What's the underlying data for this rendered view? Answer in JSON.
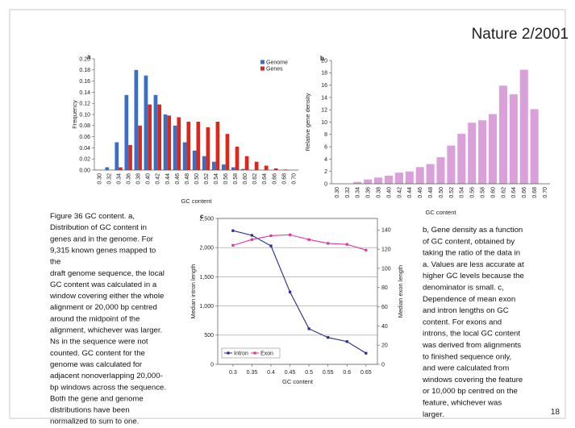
{
  "header": {
    "title": "Nature 2/2001"
  },
  "page_number": "18",
  "captions": {
    "left": [
      "Figure 36 GC content. a,",
      "Distribution of GC content in",
      "genes and in the genome. For",
      "9,315 known genes mapped to",
      "the",
      "draft genome sequence, the local",
      "GC content was calculated in a",
      "window covering either the whole",
      "alignment or 20,000 bp centred",
      "around the midpoint of the",
      "alignment, whichever was larger.",
      "Ns in the sequence were not",
      "counted. GC content for the",
      "genome was calculated for",
      "adjacent nonoverlapping 20,000-",
      "bp windows across the sequence.",
      "Both the gene and genome",
      "distributions have been",
      "normalized to sum to one."
    ],
    "right": [
      "b, Gene density as a function",
      "of GC content, obtained by",
      "taking the ratio of the data in",
      "a. Values are less accurate at",
      "higher GC levels because the",
      "denominator is small. c,",
      "Dependence of mean exon",
      "and intron lengths on GC",
      "content. For exons and",
      "introns, the local GC content",
      "was derived from alignments",
      "to finished sequence only,",
      "and were calculated from",
      "windows covering the feature",
      "or 10,000 bp centred on the",
      "feature, whichever was",
      "larger."
    ]
  },
  "chart_data": [
    {
      "type": "bar",
      "panel_label": "a",
      "x_label": "GC content",
      "y_label": "Frequency",
      "categories": [
        "0.30",
        "0.32",
        "0.34",
        "0.36",
        "0.38",
        "0.40",
        "0.42",
        "0.44",
        "0.46",
        "0.48",
        "0.50",
        "0.52",
        "0.54",
        "0.56",
        "0.58",
        "0.60",
        "0.62",
        "0.64",
        "0.66",
        "0.68",
        "0.70"
      ],
      "series": [
        {
          "name": "Genome",
          "color": "#3a6fc4",
          "values": [
            0,
            0.005,
            0.05,
            0.135,
            0.18,
            0.17,
            0.135,
            0.1,
            0.08,
            0.05,
            0.035,
            0.025,
            0.015,
            0.01,
            0.005,
            0.002,
            0,
            0,
            0,
            0,
            0
          ]
        },
        {
          "name": "Genes",
          "color": "#d9291c",
          "values": [
            0,
            0,
            0.005,
            0.045,
            0.08,
            0.118,
            0.118,
            0.098,
            0.095,
            0.087,
            0.087,
            0.077,
            0.087,
            0.065,
            0.042,
            0.025,
            0.015,
            0.008,
            0.003,
            0.001,
            0
          ]
        }
      ],
      "ylim": [
        0,
        0.2
      ],
      "yticks": [
        {
          "value": 0,
          "label": "0.00"
        },
        0.02,
        0.04,
        0.06,
        0.08,
        {
          "value": 0.1,
          "label": "0.10"
        },
        0.12,
        0.14,
        0.16,
        0.18,
        {
          "value": 0.2,
          "label": "0.20"
        }
      ],
      "legend": "upper right"
    },
    {
      "type": "bar",
      "panel_label": "b",
      "x_label": "GC content",
      "y_label": "Relative gene density",
      "categories": [
        "0.30",
        "0.32",
        "0.34",
        "0.36",
        "0.38",
        "0.40",
        "0.42",
        "0.44",
        "0.46",
        "0.48",
        "0.50",
        "0.52",
        "0.54",
        "0.56",
        "0.58",
        "0.60",
        "0.62",
        "0.64",
        "0.66",
        "0.68",
        "0.70"
      ],
      "values": [
        0,
        0,
        0.3,
        0.7,
        1.0,
        1.3,
        1.8,
        2.0,
        2.7,
        3.2,
        4.3,
        6.2,
        8.1,
        9.9,
        10.3,
        11.3,
        15.9,
        14.5,
        18.5,
        12.1,
        0
      ],
      "color": "#d9a0d9",
      "ylim": [
        0,
        20
      ],
      "yticks": [
        0,
        2,
        4,
        6,
        8,
        10,
        12,
        14,
        16,
        18,
        20
      ]
    },
    {
      "type": "line",
      "panel_label": "c",
      "x_label": "GC content",
      "y_label": "Median intron length",
      "y2_label": "Median exon length",
      "x": [
        0.3,
        0.35,
        0.4,
        0.45,
        0.5,
        0.55,
        0.6,
        0.65
      ],
      "series": [
        {
          "name": "Intron",
          "color": "#2a2a8c",
          "values": [
            2290,
            2210,
            2030,
            1240,
            610,
            460,
            390,
            190
          ]
        },
        {
          "name": "Exon",
          "color": "#e0359b",
          "axis": "y2",
          "values": [
            124,
            130,
            134,
            135,
            130,
            126,
            125,
            119
          ]
        }
      ],
      "xlim": [
        0.26,
        0.68
      ],
      "xticks": [
        0.3,
        0.35,
        0.4,
        0.45,
        0.5,
        0.55,
        0.6,
        0.65
      ],
      "ylim": [
        0,
        2500
      ],
      "yticks": [
        0,
        500,
        {
          "value": 1000,
          "label": "1,000"
        },
        {
          "value": 1500,
          "label": "1,500"
        },
        {
          "value": 2000,
          "label": "2,000"
        },
        {
          "value": 2500,
          "label": "2,500"
        }
      ],
      "y2lim": [
        0,
        152
      ],
      "y2ticks": [
        0,
        20,
        40,
        60,
        80,
        100,
        120,
        140
      ],
      "grid": true,
      "legend": "lower left"
    }
  ]
}
